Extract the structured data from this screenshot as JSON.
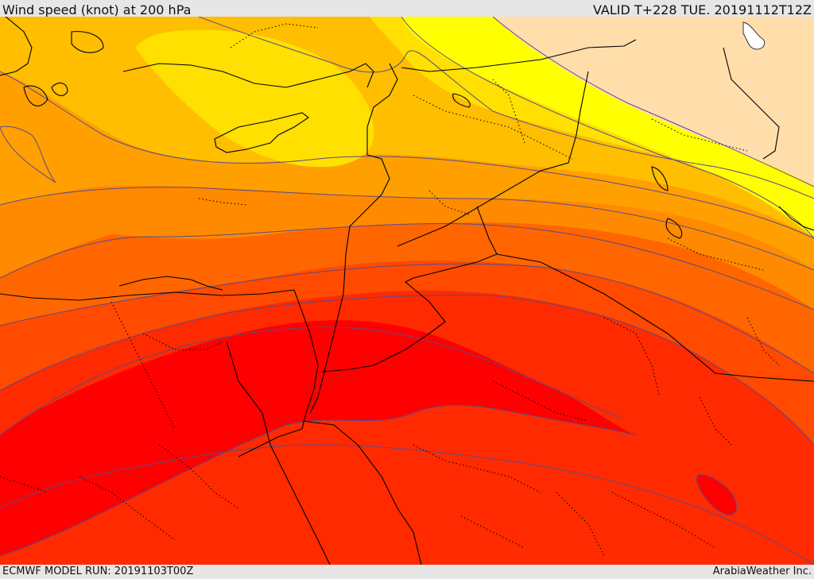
{
  "header": {
    "title": "Wind speed (knot) at 200 hPa",
    "valid": "VALID T+228 TUE. 20191112T12Z"
  },
  "footer": {
    "model_run": "ECMWF MODEL RUN: 20191103T00Z",
    "credit": "ArabiaWeather Inc."
  },
  "map": {
    "variable": "wind speed",
    "level": "200 hPa",
    "units": "knot",
    "colors": {
      "band_lightest": "#ffdeab",
      "band_yellow": "#ffff00",
      "band_gold": "#ffe000",
      "band_amber": "#ffbe00",
      "band_orange_light": "#ffa000",
      "band_orange": "#ff8a00",
      "band_orange_dark": "#ff6600",
      "band_red_orange": "#ff4a00",
      "band_red_light": "#ff2a00",
      "band_red": "#ff0000",
      "contour_line": "#5a4a8a",
      "border_line": "#000000"
    }
  }
}
